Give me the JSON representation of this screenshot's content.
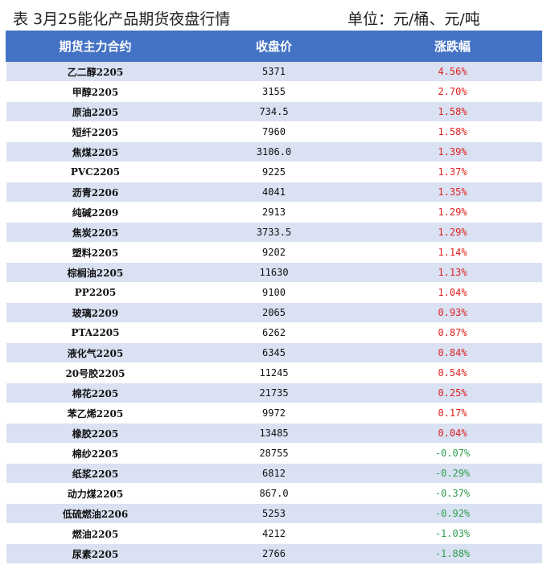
{
  "header": {
    "title": "表 3月25能化产品期货夜盘行情",
    "unit": "单位：元/桶、元/吨"
  },
  "table": {
    "columns": [
      "期货主力合约",
      "收盘价",
      "涨跌幅"
    ],
    "rows": [
      {
        "name": "乙二醇2205",
        "price": "5371",
        "change": "4.56%",
        "dir": "up"
      },
      {
        "name": "甲醇2205",
        "price": "3155",
        "change": "2.70%",
        "dir": "up"
      },
      {
        "name": "原油2205",
        "price": "734.5",
        "change": "1.58%",
        "dir": "up"
      },
      {
        "name": "短纤2205",
        "price": "7960",
        "change": "1.58%",
        "dir": "up"
      },
      {
        "name": "焦煤2205",
        "price": "3106.0",
        "change": "1.39%",
        "dir": "up"
      },
      {
        "name": "PVC2205",
        "price": "9225",
        "change": "1.37%",
        "dir": "up"
      },
      {
        "name": "沥青2206",
        "price": "4041",
        "change": "1.35%",
        "dir": "up"
      },
      {
        "name": "纯碱2209",
        "price": "2913",
        "change": "1.29%",
        "dir": "up"
      },
      {
        "name": "焦炭2205",
        "price": "3733.5",
        "change": "1.29%",
        "dir": "up"
      },
      {
        "name": "塑料2205",
        "price": "9202",
        "change": "1.14%",
        "dir": "up"
      },
      {
        "name": "棕榈油2205",
        "price": "11630",
        "change": "1.13%",
        "dir": "up"
      },
      {
        "name": "PP2205",
        "price": "9100",
        "change": "1.04%",
        "dir": "up"
      },
      {
        "name": "玻璃2209",
        "price": "2065",
        "change": "0.93%",
        "dir": "up"
      },
      {
        "name": "PTA2205",
        "price": "6262",
        "change": "0.87%",
        "dir": "up"
      },
      {
        "name": "液化气2205",
        "price": "6345",
        "change": "0.84%",
        "dir": "up"
      },
      {
        "name": "20号胶2205",
        "price": "11245",
        "change": "0.54%",
        "dir": "up"
      },
      {
        "name": "棉花2205",
        "price": "21735",
        "change": "0.25%",
        "dir": "up"
      },
      {
        "name": "苯乙烯2205",
        "price": "9972",
        "change": "0.17%",
        "dir": "up"
      },
      {
        "name": "橡胶2205",
        "price": "13485",
        "change": "0.04%",
        "dir": "up"
      },
      {
        "name": "棉纱2205",
        "price": "28755",
        "change": "-0.07%",
        "dir": "down"
      },
      {
        "name": "纸浆2205",
        "price": "6812",
        "change": "-0.29%",
        "dir": "down"
      },
      {
        "name": "动力煤2205",
        "price": "867.0",
        "change": "-0.37%",
        "dir": "down"
      },
      {
        "name": "低硫燃油2206",
        "price": "5253",
        "change": "-0.92%",
        "dir": "down"
      },
      {
        "name": "燃油2205",
        "price": "4212",
        "change": "-1.03%",
        "dir": "down"
      },
      {
        "name": "尿素2205",
        "price": "2766",
        "change": "-1.88%",
        "dir": "down"
      }
    ]
  },
  "colors": {
    "header_bg": "#4472c4",
    "band_bg": "#d9e1f2",
    "up": "#e02020",
    "down": "#2e9e4f"
  }
}
